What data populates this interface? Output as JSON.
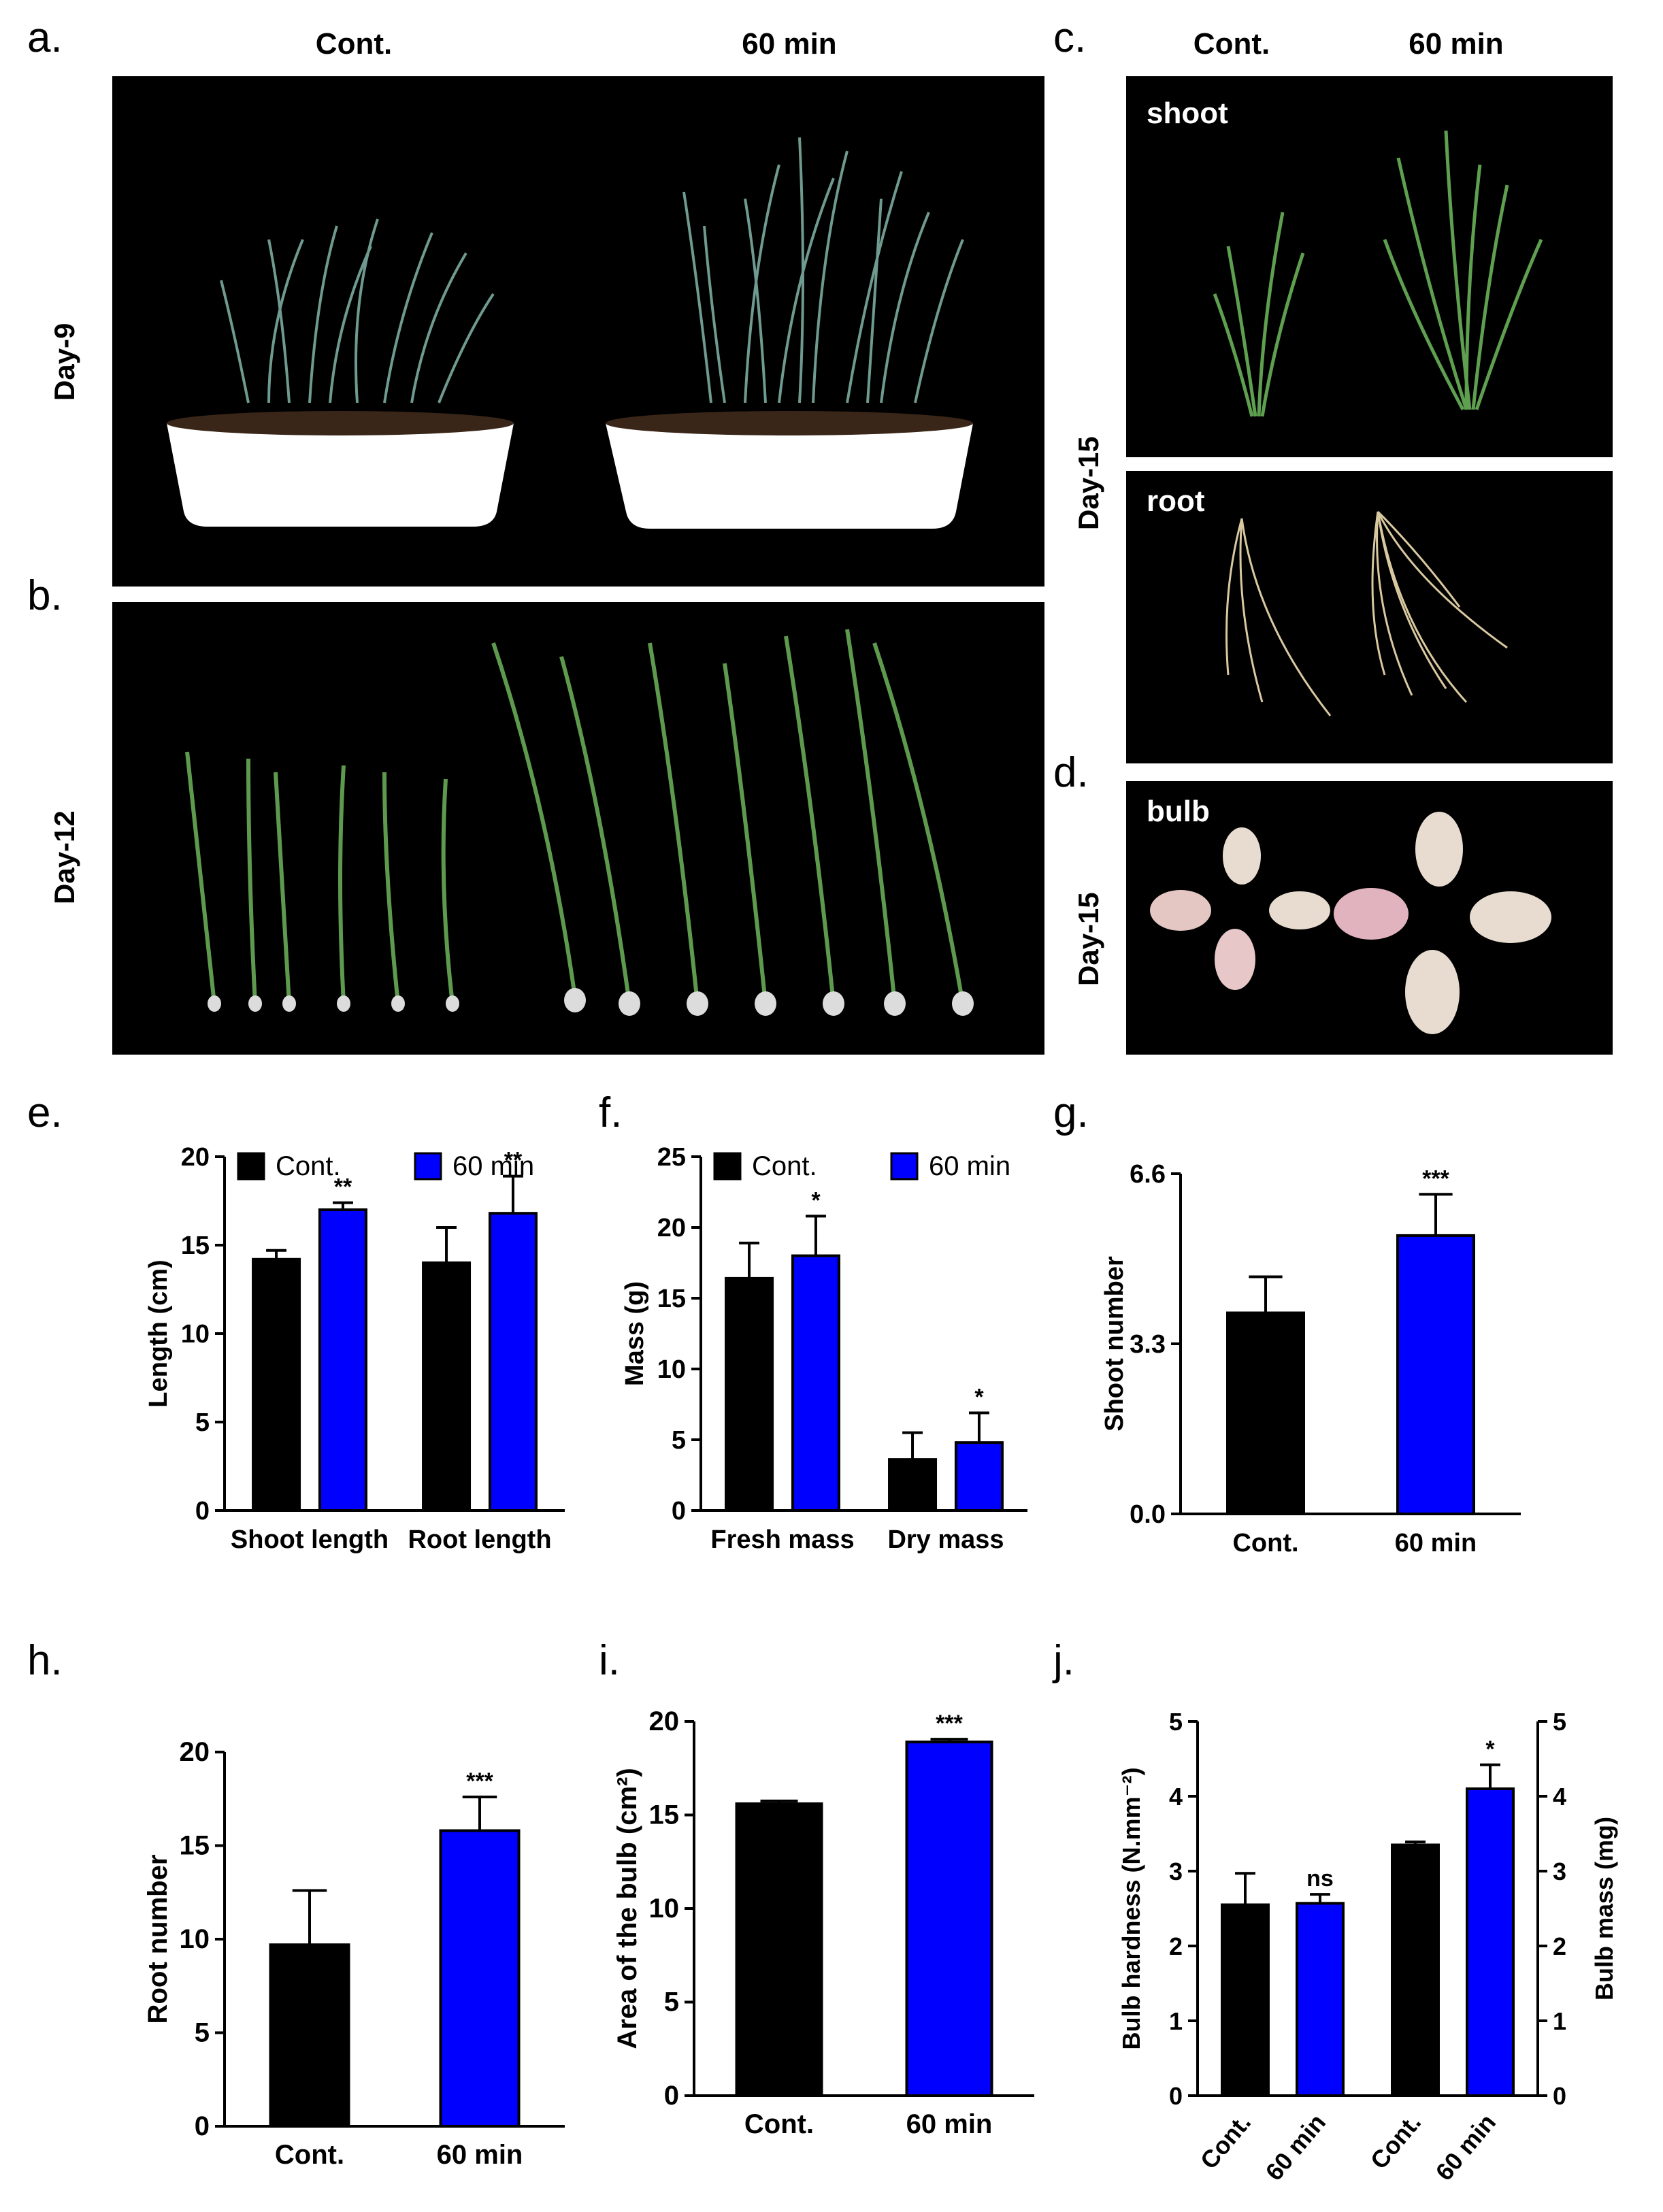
{
  "panels": {
    "a": {
      "letter": "a.",
      "col_left": "Cont.",
      "col_right": "60 min",
      "day": "Day-9"
    },
    "b": {
      "letter": "b.",
      "day": "Day-12"
    },
    "c": {
      "letter": "c.",
      "col_left": "Cont.",
      "col_right": "60 min",
      "day": "Day-15",
      "label_shoot": "shoot",
      "label_root": "root"
    },
    "d": {
      "letter": "d.",
      "day": "Day-15",
      "label_bulb": "bulb"
    },
    "e": {
      "letter": "e."
    },
    "f": {
      "letter": "f."
    },
    "g": {
      "letter": "g."
    },
    "h": {
      "letter": "h."
    },
    "i": {
      "letter": "i."
    },
    "j": {
      "letter": "j."
    }
  },
  "colors": {
    "control": "#000000",
    "treatment": "#0000ff"
  },
  "chart_data": [
    {
      "id": "e",
      "type": "bar",
      "ylabel": "Length (cm)",
      "ylim": [
        0,
        20
      ],
      "yticks": [
        "0",
        "5",
        "10",
        "15",
        "20"
      ],
      "categories": [
        "Shoot length",
        "Root length"
      ],
      "series": [
        {
          "name": "Cont.",
          "values": [
            14.2,
            14.0
          ],
          "err": [
            0.5,
            2.0
          ],
          "sig": [
            "",
            ""
          ]
        },
        {
          "name": "60 min",
          "values": [
            17.0,
            16.8
          ],
          "err": [
            0.4,
            2.1
          ],
          "sig": [
            "**",
            "**"
          ]
        }
      ],
      "legend": "top"
    },
    {
      "id": "f",
      "type": "bar",
      "ylabel": "Mass (g)",
      "ylim": [
        0,
        25
      ],
      "yticks": [
        "0",
        "5",
        "10",
        "15",
        "20",
        "25"
      ],
      "categories": [
        "Fresh mass",
        "Dry mass"
      ],
      "series": [
        {
          "name": "Cont.",
          "values": [
            16.4,
            3.6
          ],
          "err": [
            2.5,
            1.9
          ],
          "sig": [
            "",
            ""
          ]
        },
        {
          "name": "60 min",
          "values": [
            18.0,
            4.8
          ],
          "err": [
            2.8,
            2.1
          ],
          "sig": [
            "*",
            "*"
          ]
        }
      ],
      "legend": "top"
    },
    {
      "id": "g",
      "type": "bar",
      "ylabel": "Shoot number",
      "ylim": [
        0,
        6.6
      ],
      "yticks": [
        "0.0",
        "3.3",
        "6.6"
      ],
      "categories": [
        "Cont.",
        "60 min"
      ],
      "values": [
        3.9,
        5.4
      ],
      "err": [
        0.7,
        0.8
      ],
      "sig": [
        "",
        "***"
      ]
    },
    {
      "id": "h",
      "type": "bar",
      "ylabel": "Root number",
      "ylim": [
        0,
        20
      ],
      "yticks": [
        "0",
        "5",
        "10",
        "15",
        "20"
      ],
      "categories": [
        "Cont.",
        "60 min"
      ],
      "values": [
        9.7,
        15.8
      ],
      "err": [
        2.9,
        1.8
      ],
      "sig": [
        "",
        "***"
      ]
    },
    {
      "id": "i",
      "type": "bar",
      "ylabel": "Area of the bulb (cm²)",
      "ylim": [
        0,
        20
      ],
      "yticks": [
        "0",
        "5",
        "10",
        "15",
        "20"
      ],
      "categories": [
        "Cont.",
        "60 min"
      ],
      "values": [
        15.6,
        18.9
      ],
      "err": [
        0.15,
        0.15
      ],
      "sig": [
        "",
        "***"
      ]
    },
    {
      "id": "j",
      "type": "bar",
      "ylabel": "Bulb hardness (N.mm⁻²)",
      "ylabel_right": "Bulb mass (mg)",
      "ylim": [
        0,
        5
      ],
      "yticks": [
        "0",
        "1",
        "2",
        "3",
        "4",
        "5"
      ],
      "categories": [
        "Cont.",
        "60 min",
        "Cont.",
        "60 min"
      ],
      "values": [
        2.55,
        2.57,
        3.35,
        4.1
      ],
      "err": [
        0.42,
        0.12,
        0.04,
        0.32
      ],
      "sig": [
        "",
        "ns",
        "",
        "*"
      ]
    }
  ]
}
